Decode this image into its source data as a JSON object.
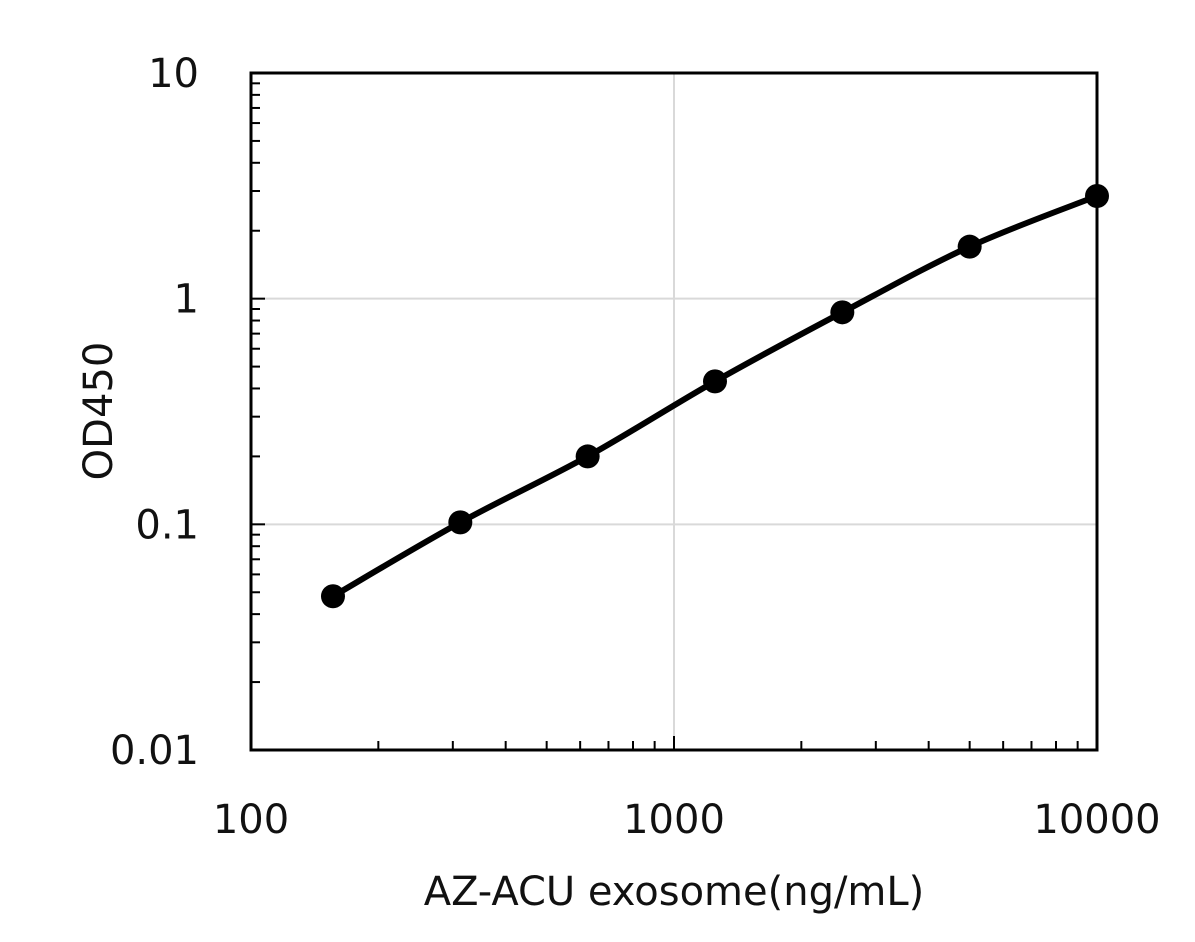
{
  "chart_data": {
    "type": "line",
    "xlabel": "AZ-ACU exosome(ng/mL)",
    "ylabel": "OD450",
    "x_scale": "log",
    "y_scale": "log",
    "xlim": [
      100,
      10000
    ],
    "ylim": [
      0.01,
      10
    ],
    "x_ticks": [
      {
        "value": 100,
        "label": "100"
      },
      {
        "value": 1000,
        "label": "1000"
      },
      {
        "value": 10000,
        "label": "10000"
      }
    ],
    "y_ticks": [
      {
        "value": 0.01,
        "label": "0.01"
      },
      {
        "value": 0.1,
        "label": "0.1"
      },
      {
        "value": 1,
        "label": "1"
      },
      {
        "value": 10,
        "label": "10"
      }
    ],
    "grid": "major",
    "legend": "none",
    "series": [
      {
        "color": "#000000",
        "marker": "circle",
        "x": [
          156.25,
          312.5,
          625,
          1250,
          2500,
          5000,
          10000
        ],
        "y": [
          0.048,
          0.102,
          0.2,
          0.43,
          0.87,
          1.7,
          2.85
        ]
      }
    ],
    "colors": {
      "grid": "#d9d9d9",
      "axis": "#000000",
      "series": "#000000"
    }
  }
}
